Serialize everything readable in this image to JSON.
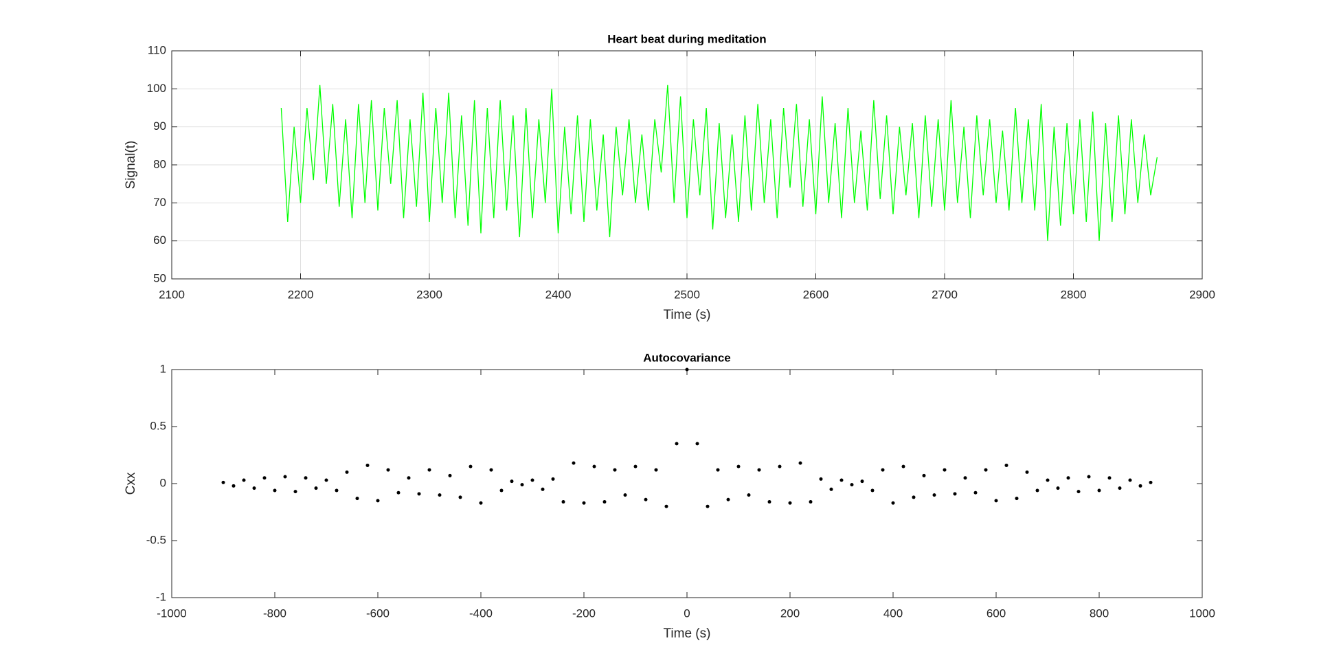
{
  "chart_data": [
    {
      "type": "line",
      "title": "Heart beat during meditation",
      "x_label": "Time (s)",
      "y_label": "Signal(t)",
      "x": [
        2185,
        2190,
        2195,
        2200,
        2205,
        2210,
        2215,
        2220,
        2225,
        2230,
        2235,
        2240,
        2245,
        2250,
        2255,
        2260,
        2265,
        2270,
        2275,
        2280,
        2285,
        2290,
        2295,
        2300,
        2305,
        2310,
        2315,
        2320,
        2325,
        2330,
        2335,
        2340,
        2345,
        2350,
        2355,
        2360,
        2365,
        2370,
        2375,
        2380,
        2385,
        2390,
        2395,
        2400,
        2405,
        2410,
        2415,
        2420,
        2425,
        2430,
        2435,
        2440,
        2445,
        2450,
        2455,
        2460,
        2465,
        2470,
        2475,
        2480,
        2485,
        2490,
        2495,
        2500,
        2505,
        2510,
        2515,
        2520,
        2525,
        2530,
        2535,
        2540,
        2545,
        2550,
        2555,
        2560,
        2565,
        2570,
        2575,
        2580,
        2585,
        2590,
        2595,
        2600,
        2605,
        2610,
        2615,
        2620,
        2625,
        2630,
        2635,
        2640,
        2645,
        2650,
        2655,
        2660,
        2665,
        2670,
        2675,
        2680,
        2685,
        2690,
        2695,
        2700,
        2705,
        2710,
        2715,
        2720,
        2725,
        2730,
        2735,
        2740,
        2745,
        2750,
        2755,
        2760,
        2765,
        2770,
        2775,
        2780,
        2785,
        2790,
        2795,
        2800,
        2805,
        2810,
        2815,
        2820,
        2825,
        2830,
        2835,
        2840,
        2845,
        2850,
        2855,
        2860,
        2865
      ],
      "values": [
        95,
        65,
        90,
        70,
        95,
        76,
        101,
        75,
        96,
        69,
        92,
        66,
        96,
        70,
        97,
        68,
        95,
        75,
        97,
        66,
        92,
        69,
        99,
        65,
        95,
        70,
        99,
        66,
        93,
        64,
        97,
        62,
        95,
        66,
        97,
        68,
        93,
        61,
        95,
        66,
        92,
        70,
        100,
        62,
        90,
        67,
        93,
        65,
        92,
        68,
        88,
        61,
        90,
        72,
        92,
        70,
        88,
        68,
        92,
        78,
        101,
        70,
        98,
        66,
        92,
        72,
        95,
        63,
        91,
        66,
        88,
        65,
        93,
        68,
        96,
        70,
        92,
        66,
        95,
        74,
        96,
        69,
        92,
        67,
        98,
        70,
        91,
        66,
        95,
        70,
        89,
        68,
        97,
        71,
        93,
        67,
        90,
        72,
        91,
        66,
        93,
        69,
        92,
        68,
        97,
        70,
        90,
        66,
        93,
        72,
        92,
        70,
        89,
        68,
        95,
        70,
        92,
        68,
        96,
        60,
        90,
        64,
        91,
        67,
        92,
        65,
        94,
        60,
        91,
        65,
        93,
        67,
        92,
        70,
        88,
        72,
        82
      ],
      "color": "#00ff00",
      "xlim": [
        2100,
        2900
      ],
      "ylim": [
        50,
        110
      ],
      "xticks": [
        2100,
        2200,
        2300,
        2400,
        2500,
        2600,
        2700,
        2800,
        2900
      ],
      "yticks": [
        50,
        60,
        70,
        80,
        90,
        100,
        110
      ],
      "grid": true
    },
    {
      "type": "scatter",
      "title": "Autocovariance",
      "x_label": "Time (s)",
      "y_label": "Cxx",
      "x": [
        -900,
        -880,
        -860,
        -840,
        -820,
        -800,
        -780,
        -760,
        -740,
        -720,
        -700,
        -680,
        -660,
        -640,
        -620,
        -600,
        -580,
        -560,
        -540,
        -520,
        -500,
        -480,
        -460,
        -440,
        -420,
        -400,
        -380,
        -360,
        -340,
        -320,
        -300,
        -280,
        -260,
        -240,
        -220,
        -200,
        -180,
        -160,
        -140,
        -120,
        -100,
        -80,
        -60,
        -40,
        -20,
        0,
        20,
        40,
        60,
        80,
        100,
        120,
        140,
        160,
        180,
        200,
        220,
        240,
        260,
        280,
        300,
        320,
        340,
        360,
        380,
        400,
        420,
        440,
        460,
        480,
        500,
        520,
        540,
        560,
        580,
        600,
        620,
        640,
        660,
        680,
        700,
        720,
        740,
        760,
        780,
        800,
        820,
        840,
        860,
        880,
        900
      ],
      "values": [
        0.01,
        -0.02,
        0.03,
        -0.04,
        0.05,
        -0.06,
        0.06,
        -0.07,
        0.05,
        -0.04,
        0.03,
        -0.06,
        0.1,
        -0.13,
        0.16,
        -0.15,
        0.12,
        -0.08,
        0.05,
        -0.09,
        0.12,
        -0.1,
        0.07,
        -0.12,
        0.15,
        -0.17,
        0.12,
        -0.06,
        0.02,
        -0.01,
        0.03,
        -0.05,
        0.04,
        -0.16,
        0.18,
        -0.17,
        0.15,
        -0.16,
        0.12,
        -0.1,
        0.15,
        -0.14,
        0.12,
        -0.2,
        0.35,
        1,
        0.35,
        -0.2,
        0.12,
        -0.14,
        0.15,
        -0.1,
        0.12,
        -0.16,
        0.15,
        -0.17,
        0.18,
        -0.16,
        0.04,
        -0.05,
        0.03,
        -0.01,
        0.02,
        -0.06,
        0.12,
        -0.17,
        0.15,
        -0.12,
        0.07,
        -0.1,
        0.12,
        -0.09,
        0.05,
        -0.08,
        0.12,
        -0.15,
        0.16,
        -0.13,
        0.1,
        -0.06,
        0.03,
        -0.04,
        0.05,
        -0.07,
        0.06,
        -0.06,
        0.05,
        -0.04,
        0.03,
        -0.02,
        0.01
      ],
      "color": "#000000",
      "xlim": [
        -1000,
        1000
      ],
      "ylim": [
        -1,
        1
      ],
      "xticks": [
        -1000,
        -800,
        -600,
        -400,
        -200,
        0,
        200,
        400,
        600,
        800,
        1000
      ],
      "yticks": [
        -1,
        -0.5,
        0,
        0.5,
        1
      ],
      "grid": false
    }
  ]
}
